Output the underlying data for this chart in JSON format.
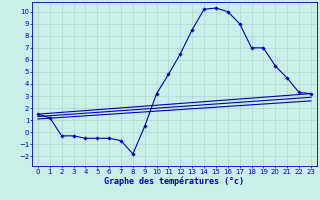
{
  "xlabel": "Graphe des températures (°c)",
  "xlim": [
    -0.5,
    23.5
  ],
  "ylim": [
    -2.8,
    10.8
  ],
  "xticks": [
    0,
    1,
    2,
    3,
    4,
    5,
    6,
    7,
    8,
    9,
    10,
    11,
    12,
    13,
    14,
    15,
    16,
    17,
    18,
    19,
    20,
    21,
    22,
    23
  ],
  "yticks": [
    -2,
    -1,
    0,
    1,
    2,
    3,
    4,
    5,
    6,
    7,
    8,
    9,
    10
  ],
  "background_color": "#cceee8",
  "grid_color": "#aad8d0",
  "line_color": "#0000bb",
  "curve_x": [
    0,
    1,
    2,
    3,
    4,
    5,
    6,
    7,
    8,
    9,
    10,
    11,
    12,
    13,
    14,
    15,
    16,
    17,
    18,
    19,
    20,
    21,
    22,
    23
  ],
  "curve_y": [
    1.5,
    1.2,
    -0.3,
    -0.3,
    -0.5,
    -0.5,
    -0.5,
    -0.7,
    -1.8,
    0.5,
    3.2,
    4.8,
    6.5,
    8.5,
    10.2,
    10.3,
    10.0,
    9.0,
    7.0,
    7.0,
    5.5,
    4.5,
    3.3,
    3.2
  ],
  "trend1_x": [
    0,
    23
  ],
  "trend1_y": [
    1.5,
    3.2
  ],
  "trend2_x": [
    0,
    23
  ],
  "trend2_y": [
    1.3,
    2.9
  ],
  "trend3_x": [
    0,
    23
  ],
  "trend3_y": [
    1.1,
    2.6
  ],
  "xlabel_fontsize": 6.0,
  "tick_fontsize": 5.0,
  "linewidth": 0.8,
  "markersize": 1.8
}
